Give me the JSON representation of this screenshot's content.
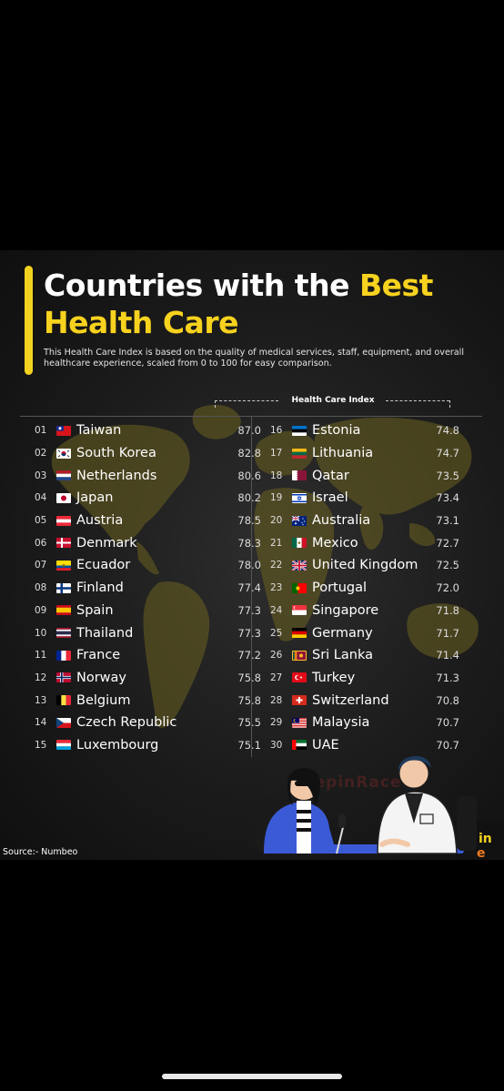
{
  "title": {
    "part1": "Countries with the ",
    "highlight": "Best",
    "part2": "Health Care"
  },
  "subtitle": "This Health Care Index is based on the quality of medical services, staff, equipment, and overall healthcare experience, scaled from 0 to 100 for easy comparison.",
  "source": "Source:- Numbeo",
  "colors": {
    "accent": "#f2d21f",
    "background": "#1b1b1b",
    "map": "#7a6d22"
  },
  "chart_data": {
    "type": "table",
    "value_header": "Health Care Index",
    "rows": [
      {
        "rank": "01",
        "country": "Taiwan",
        "value": "87.0",
        "flag": "taiwan-flag"
      },
      {
        "rank": "02",
        "country": "South Korea",
        "value": "82.8",
        "flag": "south-korea-flag"
      },
      {
        "rank": "03",
        "country": "Netherlands",
        "value": "80.6",
        "flag": "netherlands-flag"
      },
      {
        "rank": "04",
        "country": "Japan",
        "value": "80.2",
        "flag": "japan-flag"
      },
      {
        "rank": "05",
        "country": "Austria",
        "value": "78.5",
        "flag": "austria-flag"
      },
      {
        "rank": "06",
        "country": "Denmark",
        "value": "78.3",
        "flag": "denmark-flag"
      },
      {
        "rank": "07",
        "country": "Ecuador",
        "value": "78.0",
        "flag": "ecuador-flag"
      },
      {
        "rank": "08",
        "country": "Finland",
        "value": "77.4",
        "flag": "finland-flag"
      },
      {
        "rank": "09",
        "country": "Spain",
        "value": "77.3",
        "flag": "spain-flag"
      },
      {
        "rank": "10",
        "country": "Thailand",
        "value": "77.3",
        "flag": "thailand-flag"
      },
      {
        "rank": "11",
        "country": "France",
        "value": "77.2",
        "flag": "france-flag"
      },
      {
        "rank": "12",
        "country": "Norway",
        "value": "75.8",
        "flag": "norway-flag"
      },
      {
        "rank": "13",
        "country": "Belgium",
        "value": "75.8",
        "flag": "belgium-flag"
      },
      {
        "rank": "14",
        "country": "Czech Republic",
        "value": "75.5",
        "flag": "czech-republic-flag"
      },
      {
        "rank": "15",
        "country": "Luxembourg",
        "value": "75.1",
        "flag": "luxembourg-flag"
      },
      {
        "rank": "16",
        "country": "Estonia",
        "value": "74.8",
        "flag": "estonia-flag"
      },
      {
        "rank": "17",
        "country": "Lithuania",
        "value": "74.7",
        "flag": "lithuania-flag"
      },
      {
        "rank": "18",
        "country": "Qatar",
        "value": "73.5",
        "flag": "qatar-flag"
      },
      {
        "rank": "19",
        "country": "Israel",
        "value": "73.4",
        "flag": "israel-flag"
      },
      {
        "rank": "20",
        "country": "Australia",
        "value": "73.1",
        "flag": "australia-flag"
      },
      {
        "rank": "21",
        "country": "Mexico",
        "value": "72.7",
        "flag": "mexico-flag"
      },
      {
        "rank": "22",
        "country": "United Kingdom",
        "value": "72.5",
        "flag": "united-kingdom-flag"
      },
      {
        "rank": "23",
        "country": "Portugal",
        "value": "72.0",
        "flag": "portugal-flag"
      },
      {
        "rank": "24",
        "country": "Singapore",
        "value": "71.8",
        "flag": "singapore-flag"
      },
      {
        "rank": "25",
        "country": "Germany",
        "value": "71.7",
        "flag": "germany-flag"
      },
      {
        "rank": "26",
        "country": "Sri Lanka",
        "value": "71.4",
        "flag": "sri-lanka-flag"
      },
      {
        "rank": "27",
        "country": "Turkey",
        "value": "71.3",
        "flag": "turkey-flag"
      },
      {
        "rank": "28",
        "country": "Switzerland",
        "value": "70.8",
        "flag": "switzerland-flag"
      },
      {
        "rank": "29",
        "country": "Malaysia",
        "value": "70.7",
        "flag": "malaysia-flag"
      },
      {
        "rank": "30",
        "country": "UAE",
        "value": "70.7",
        "flag": "uae-flag"
      }
    ]
  }
}
